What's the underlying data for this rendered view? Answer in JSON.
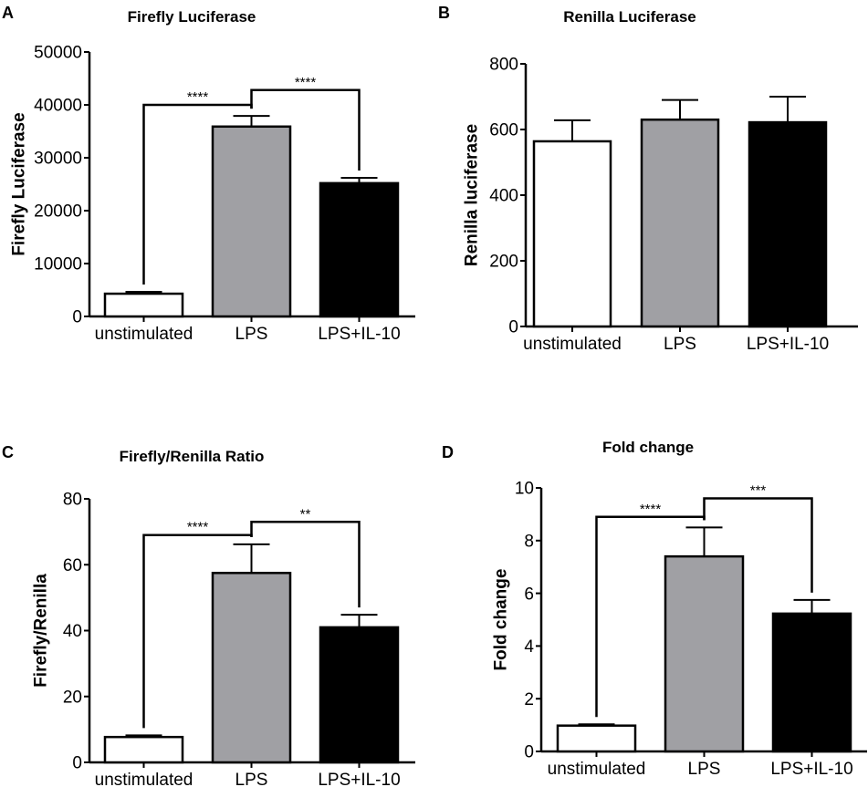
{
  "chart_data": [
    {
      "panel": "A",
      "type": "bar",
      "title": "Firefly Luciferase",
      "xlabel": "",
      "ylabel": "Firefly Luciferase",
      "categories": [
        "unstimulated",
        "LPS",
        "LPS+IL-10"
      ],
      "values": [
        4300,
        35900,
        25200
      ],
      "errors": [
        350,
        2000,
        1000
      ],
      "ylim": [
        0,
        50000
      ],
      "yticks": [
        "0",
        "10000",
        "20000",
        "30000",
        "40000",
        "50000"
      ],
      "bar_colors": [
        "#ffffff",
        "#a0a0a4",
        "#000000"
      ],
      "significance": [
        {
          "from": 0,
          "to": 1,
          "label": "****",
          "y": 40000
        },
        {
          "from": 1,
          "to": 2,
          "label": "****",
          "y": 42800
        }
      ]
    },
    {
      "panel": "B",
      "type": "bar",
      "title": "Renilla Luciferase",
      "xlabel": "",
      "ylabel": "Renilla luciferase",
      "categories": [
        "unstimulated",
        "LPS",
        "LPS+IL-10"
      ],
      "values": [
        564,
        630,
        622
      ],
      "errors": [
        64,
        60,
        78
      ],
      "ylim": [
        0,
        800
      ],
      "yticks": [
        "0",
        "200",
        "400",
        "600",
        "800"
      ],
      "bar_colors": [
        "#ffffff",
        "#a0a0a4",
        "#000000"
      ],
      "significance": []
    },
    {
      "panel": "C",
      "type": "bar",
      "title": "Firefly/Renilla Ratio",
      "xlabel": "",
      "ylabel": "Firefly/Renilla",
      "categories": [
        "unstimulated",
        "LPS",
        "LPS+IL-10"
      ],
      "values": [
        7.7,
        57.5,
        41.0
      ],
      "errors": [
        0.5,
        8.7,
        3.8
      ],
      "ylim": [
        0,
        80
      ],
      "yticks": [
        "0",
        "20",
        "40",
        "60",
        "80"
      ],
      "bar_colors": [
        "#ffffff",
        "#a0a0a4",
        "#000000"
      ],
      "significance": [
        {
          "from": 0,
          "to": 1,
          "label": "****",
          "y": 69
        },
        {
          "from": 1,
          "to": 2,
          "label": "**",
          "y": 73
        }
      ]
    },
    {
      "panel": "D",
      "type": "bar",
      "title": "Fold change",
      "xlabel": "",
      "ylabel": "Fold change",
      "categories": [
        "unstimulated",
        "LPS",
        "LPS+IL-10"
      ],
      "values": [
        0.98,
        7.4,
        5.23
      ],
      "errors": [
        0.05,
        1.1,
        0.52
      ],
      "ylim": [
        0,
        10
      ],
      "yticks": [
        "0",
        "2",
        "4",
        "6",
        "8",
        "10"
      ],
      "bar_colors": [
        "#ffffff",
        "#a0a0a4",
        "#000000"
      ],
      "significance": [
        {
          "from": 0,
          "to": 1,
          "label": "****",
          "y": 8.9
        },
        {
          "from": 1,
          "to": 2,
          "label": "***",
          "y": 9.6
        }
      ]
    }
  ]
}
